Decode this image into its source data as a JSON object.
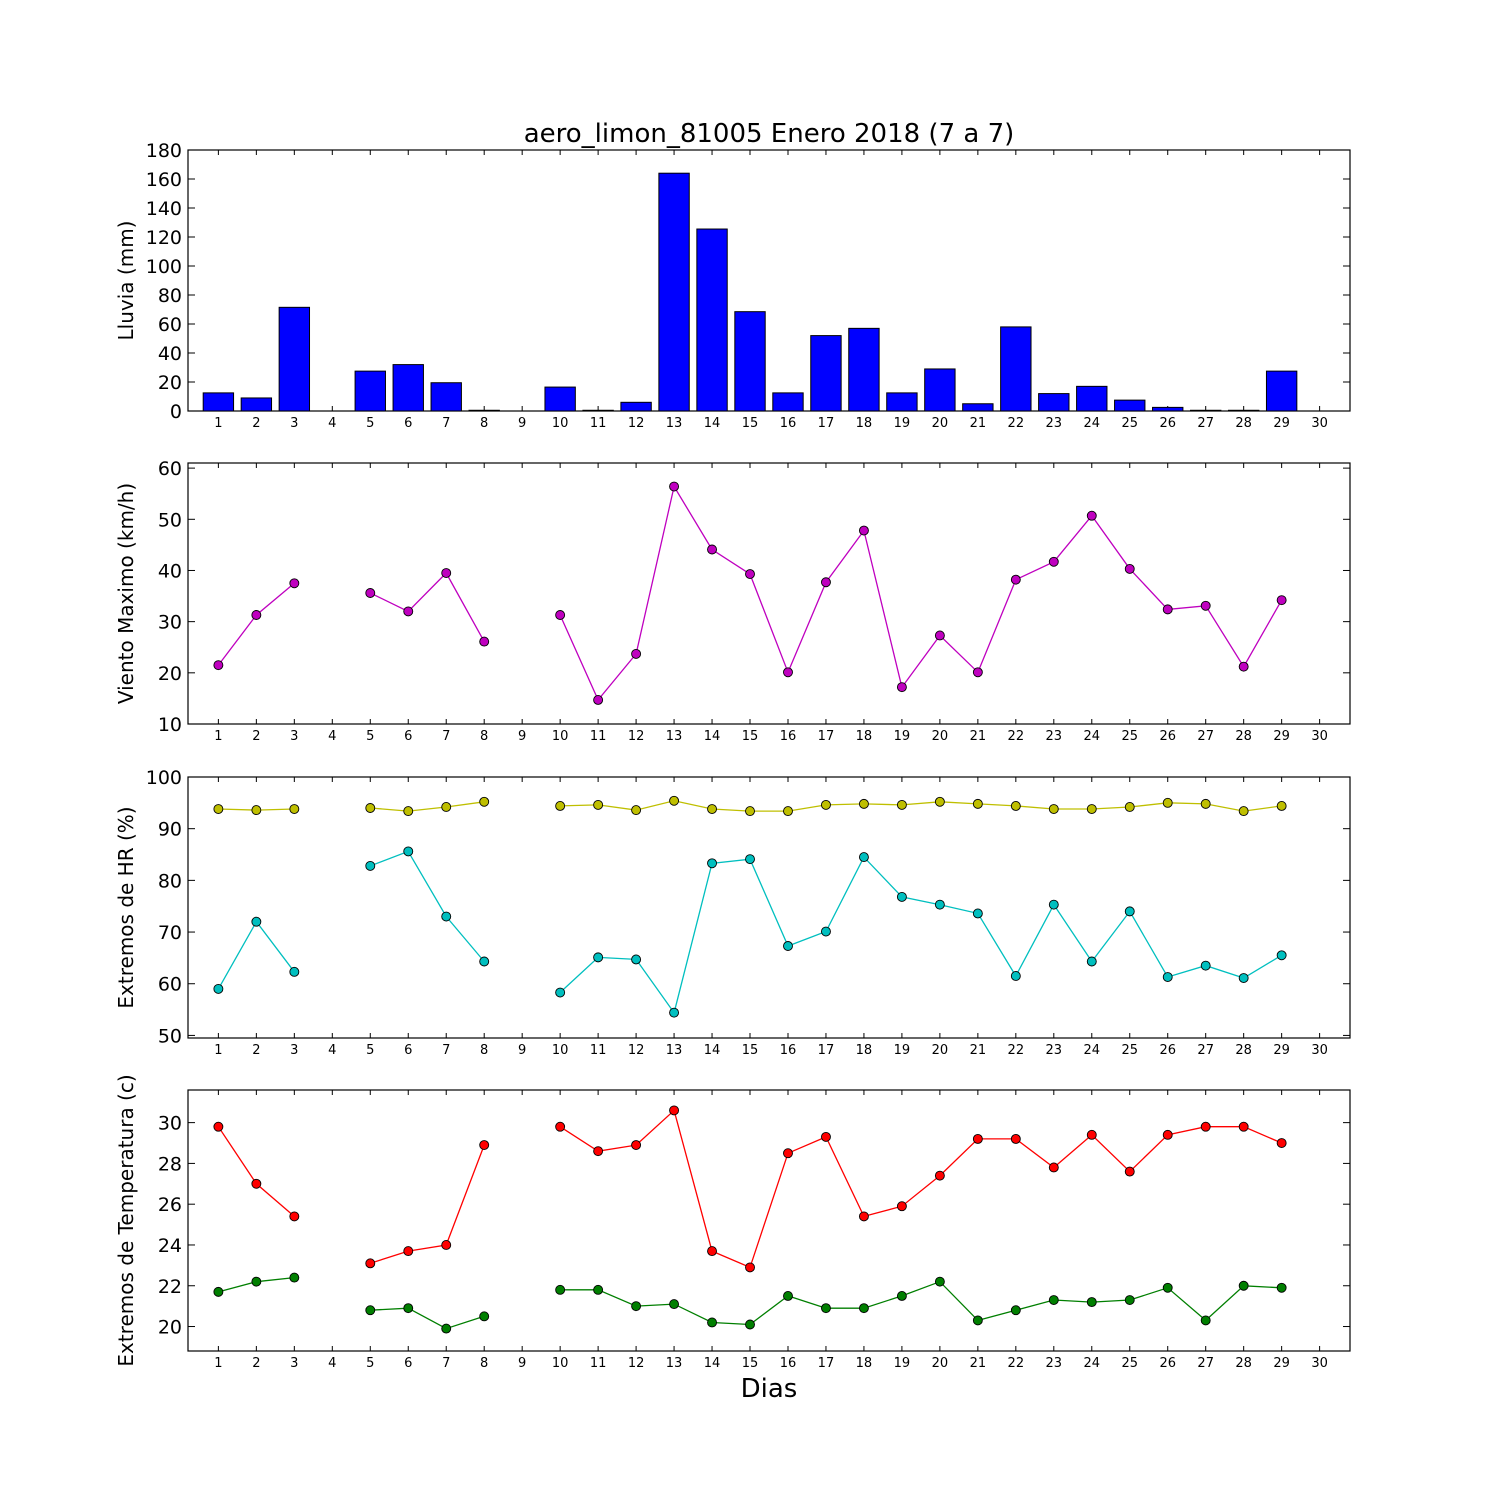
{
  "chart_data": [
    {
      "type": "bar",
      "title": "aero_limon_81005 Enero 2018  (7 a 7)",
      "ylabel": "Lluvia (mm)",
      "xlabel": "",
      "ylim": [
        0,
        180
      ],
      "yticks": [
        0,
        20,
        40,
        60,
        80,
        100,
        120,
        140,
        160,
        180
      ],
      "categories": [
        1,
        2,
        3,
        4,
        5,
        6,
        7,
        8,
        9,
        10,
        11,
        12,
        13,
        14,
        15,
        16,
        17,
        18,
        19,
        20,
        21,
        22,
        23,
        24,
        25,
        26,
        27,
        28,
        29,
        30
      ],
      "series": [
        {
          "color": "#0000ff",
          "values": [
            12.5,
            9,
            71.5,
            null,
            27.5,
            32,
            19.5,
            0.5,
            null,
            16.5,
            0.5,
            6,
            164,
            125.5,
            68.5,
            12.5,
            52,
            57,
            12.5,
            29,
            5,
            58,
            12,
            17,
            7.5,
            2.5,
            0.5,
            0.5,
            27.5,
            null
          ]
        }
      ]
    },
    {
      "type": "line",
      "title": "",
      "ylabel": "Viento Maximo (km/h)",
      "xlabel": "",
      "ylim": [
        10,
        61
      ],
      "yticks": [
        10,
        20,
        30,
        40,
        50,
        60
      ],
      "categories": [
        1,
        2,
        3,
        4,
        5,
        6,
        7,
        8,
        9,
        10,
        11,
        12,
        13,
        14,
        15,
        16,
        17,
        18,
        19,
        20,
        21,
        22,
        23,
        24,
        25,
        26,
        27,
        28,
        29,
        30
      ],
      "series": [
        {
          "color": "#bf00bf",
          "values": [
            21.5,
            31.3,
            37.5,
            null,
            35.6,
            32,
            39.5,
            26.1,
            null,
            31.3,
            14.7,
            23.7,
            56.4,
            44.1,
            39.3,
            20.1,
            37.7,
            47.8,
            17.2,
            27.3,
            20.1,
            38.2,
            41.7,
            50.7,
            40.3,
            32.4,
            33.1,
            21.2,
            34.2,
            null
          ]
        }
      ]
    },
    {
      "type": "line",
      "title": "",
      "ylabel": "Extremos de HR (%)",
      "xlabel": "",
      "ylim": [
        49.5,
        100
      ],
      "yticks": [
        50,
        60,
        70,
        80,
        90,
        100
      ],
      "categories": [
        1,
        2,
        3,
        4,
        5,
        6,
        7,
        8,
        9,
        10,
        11,
        12,
        13,
        14,
        15,
        16,
        17,
        18,
        19,
        20,
        21,
        22,
        23,
        24,
        25,
        26,
        27,
        28,
        29,
        30
      ],
      "series": [
        {
          "color": "#bfbf00",
          "values": [
            93.8,
            93.6,
            93.8,
            null,
            94,
            93.4,
            94.2,
            95.2,
            null,
            94.4,
            94.6,
            93.6,
            95.4,
            93.8,
            93.4,
            93.4,
            94.6,
            94.8,
            94.6,
            95.2,
            94.8,
            94.4,
            93.8,
            93.8,
            94.2,
            95,
            94.8,
            93.4,
            94.4,
            null
          ]
        },
        {
          "color": "#00bfbf",
          "values": [
            59,
            72,
            62.3,
            null,
            82.8,
            85.6,
            73,
            64.3,
            null,
            58.3,
            65.1,
            64.7,
            54.4,
            83.3,
            84.1,
            67.3,
            70.1,
            84.5,
            76.8,
            75.3,
            73.6,
            61.5,
            75.3,
            64.3,
            74,
            61.3,
            63.5,
            61.1,
            65.5,
            null
          ]
        }
      ]
    },
    {
      "type": "line",
      "title": "",
      "ylabel": "Extremos de Temperatura (c)",
      "xlabel": "Dias",
      "ylim": [
        18.8,
        31.6
      ],
      "yticks": [
        20,
        22,
        24,
        26,
        28,
        30
      ],
      "categories": [
        1,
        2,
        3,
        4,
        5,
        6,
        7,
        8,
        9,
        10,
        11,
        12,
        13,
        14,
        15,
        16,
        17,
        18,
        19,
        20,
        21,
        22,
        23,
        24,
        25,
        26,
        27,
        28,
        29,
        30
      ],
      "series": [
        {
          "color": "#ff0000",
          "values": [
            29.8,
            27,
            25.4,
            null,
            23.1,
            23.7,
            24,
            28.9,
            null,
            29.8,
            28.6,
            28.9,
            30.6,
            23.7,
            22.9,
            28.5,
            29.3,
            25.4,
            25.9,
            27.4,
            29.2,
            29.2,
            27.8,
            29.4,
            27.6,
            29.4,
            29.8,
            29.8,
            29,
            null
          ]
        },
        {
          "color": "#007f00",
          "values": [
            21.7,
            22.2,
            22.4,
            null,
            20.8,
            20.9,
            19.9,
            20.5,
            null,
            21.8,
            21.8,
            21,
            21.1,
            20.2,
            20.1,
            21.5,
            20.9,
            20.9,
            21.5,
            22.2,
            20.3,
            20.8,
            21.3,
            21.2,
            21.3,
            21.9,
            20.3,
            22,
            21.9,
            null
          ]
        }
      ]
    }
  ]
}
